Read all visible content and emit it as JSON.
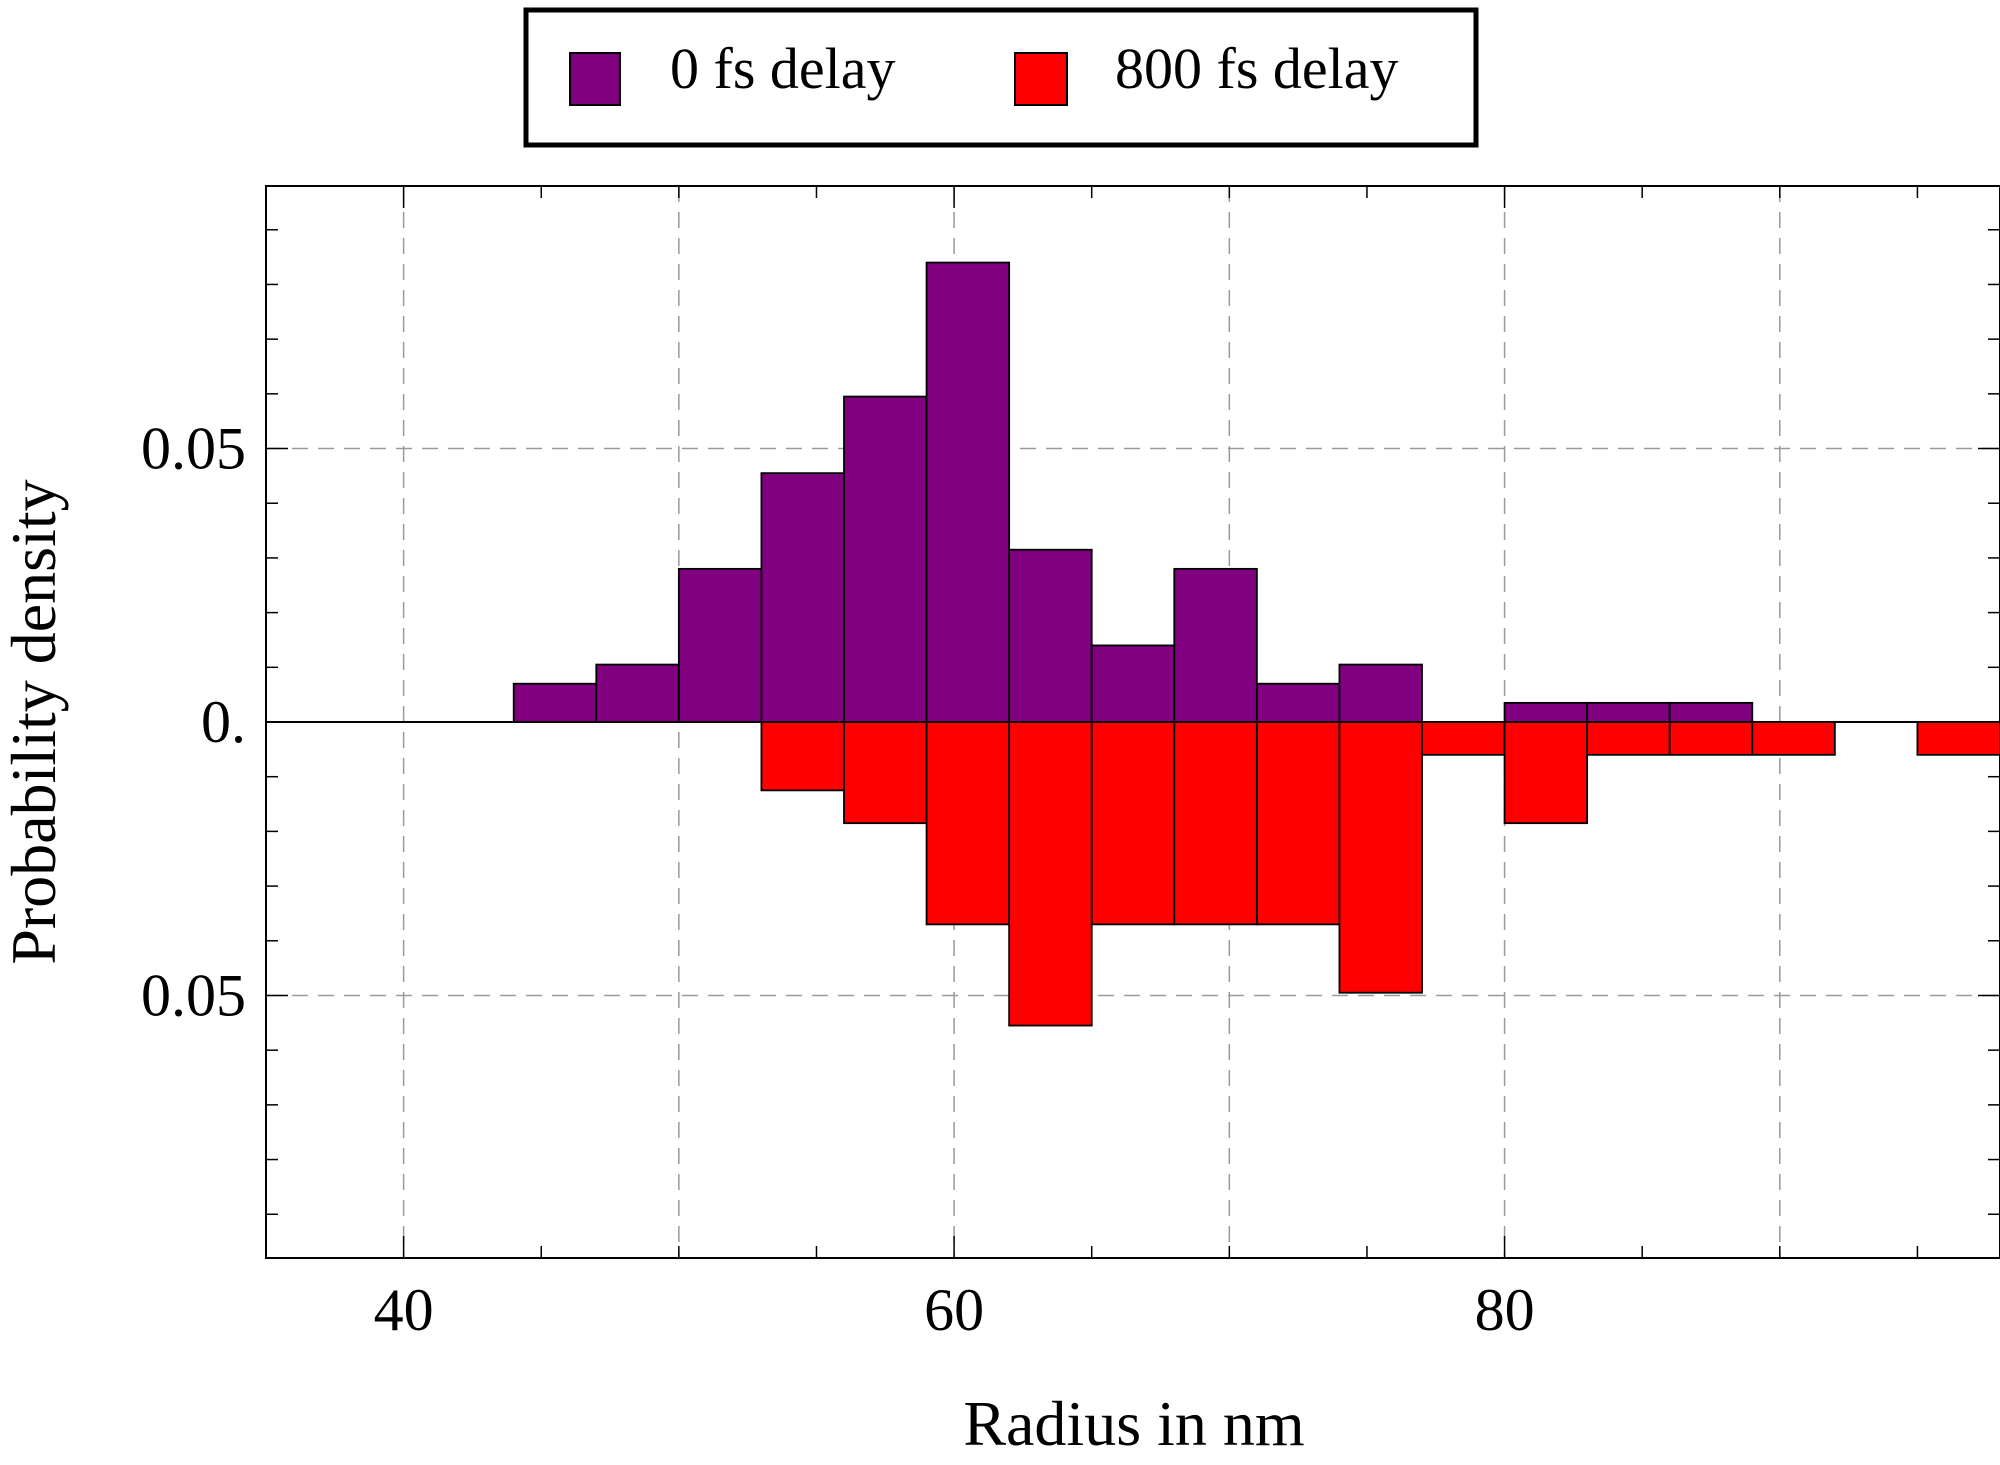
{
  "chart_data": {
    "type": "bar",
    "subtype": "back-to-back histogram",
    "xlabel": "Radius in nm",
    "ylabel": "Probability density",
    "xlim": [
      35,
      98
    ],
    "ylim": [
      -0.098,
      0.098
    ],
    "x_ticks": [
      40,
      60,
      80
    ],
    "y_ticks": [
      {
        "value": 0.05,
        "label": "0.05"
      },
      {
        "value": 0,
        "label": "0."
      },
      {
        "value": -0.05,
        "label": "0.05"
      }
    ],
    "grid": true,
    "legend_position": "top-center",
    "bin_width": 3,
    "bin_edges": [
      44,
      47,
      50,
      53,
      56,
      59,
      62,
      65,
      68,
      71,
      74,
      77,
      80,
      83,
      86,
      89,
      92,
      95,
      98
    ],
    "series": [
      {
        "name": "0 fs delay",
        "color": "#800080",
        "direction": "up",
        "values": [
          0.007,
          0.0105,
          0.028,
          0.0455,
          0.0595,
          0.084,
          0.0315,
          0.014,
          0.028,
          0.007,
          0.0105,
          0,
          0.0035,
          0.0035,
          0.0035,
          0,
          0,
          0
        ]
      },
      {
        "name": "800 fs delay",
        "color": "#ff0000",
        "direction": "down",
        "values": [
          0,
          0,
          0,
          0.0125,
          0.0185,
          0.037,
          0.0555,
          0.037,
          0.037,
          0.037,
          0.0495,
          0.006,
          0.0185,
          0.006,
          0.006,
          0.006,
          0,
          0.006
        ]
      }
    ]
  }
}
